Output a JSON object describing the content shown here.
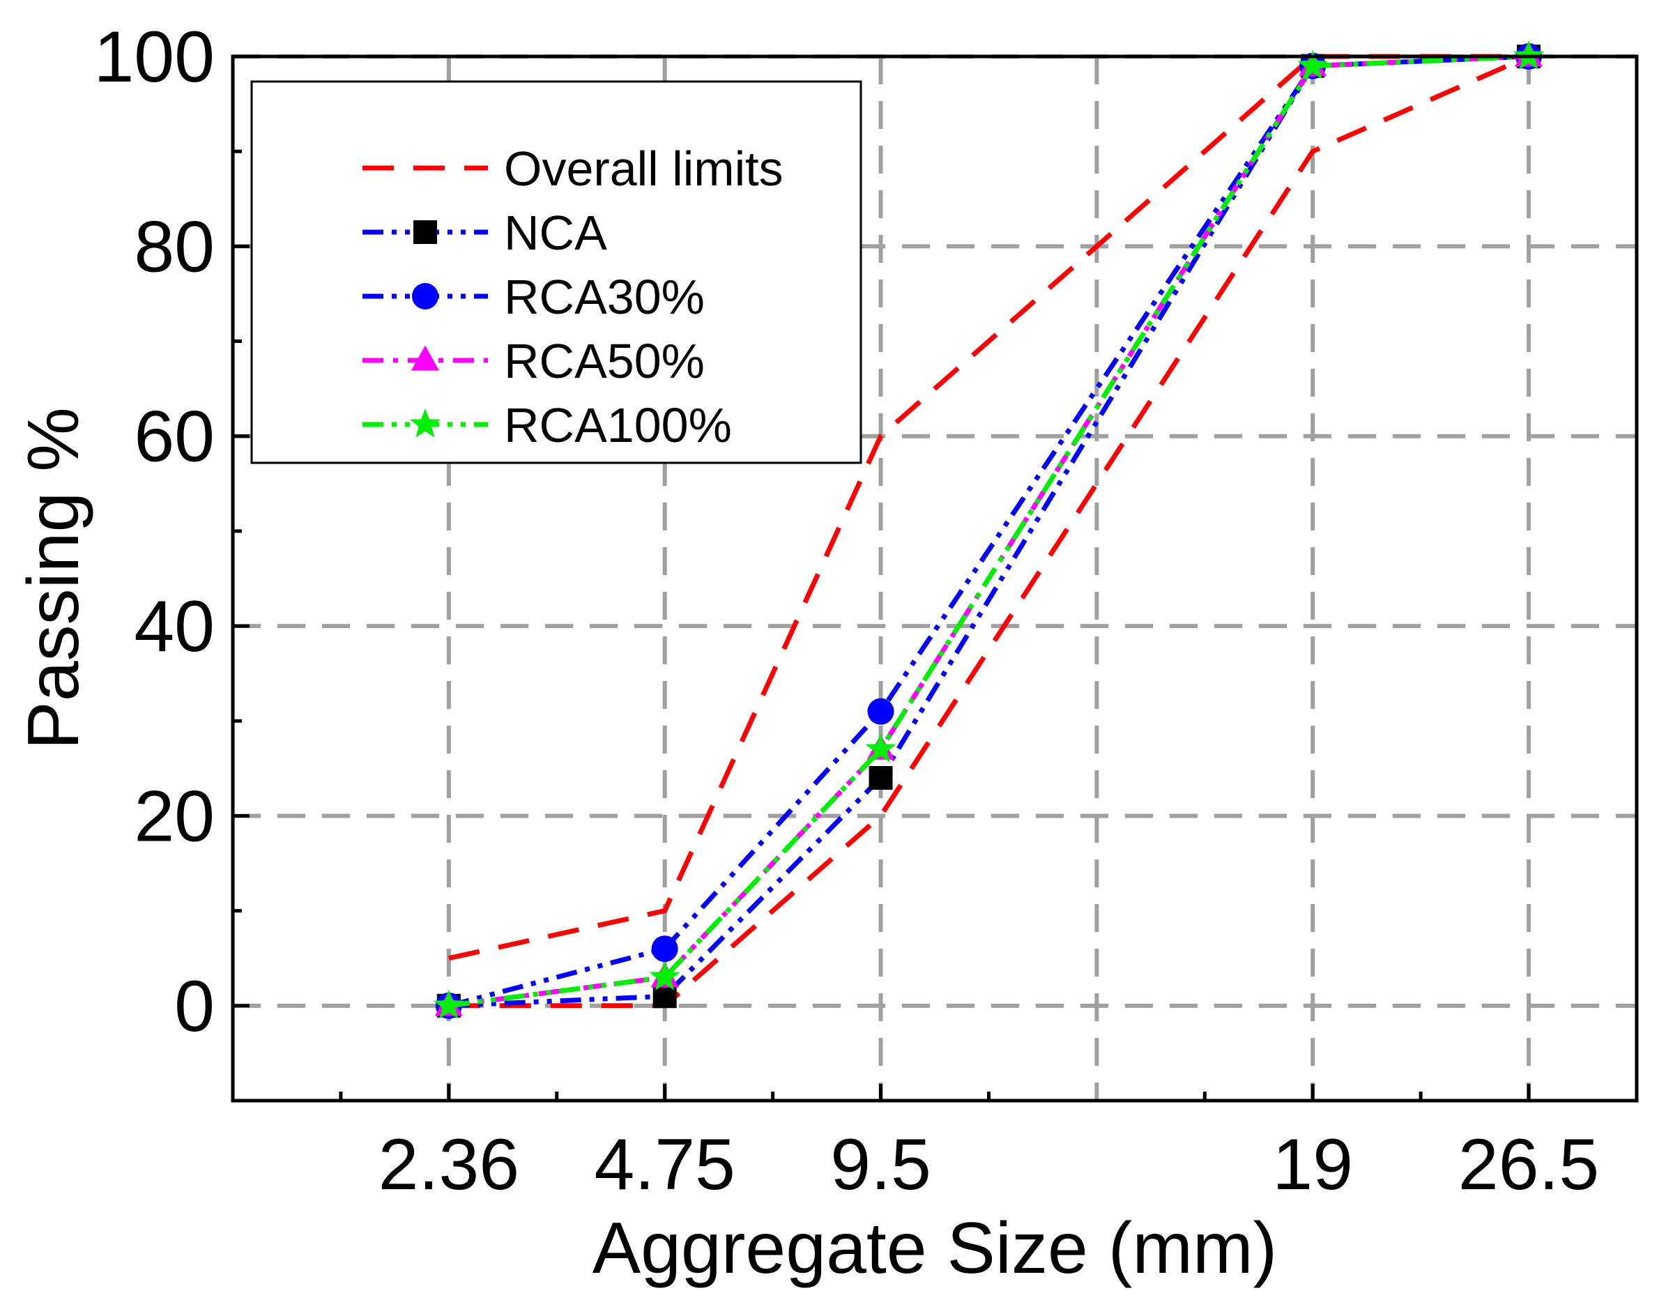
{
  "chart_data": {
    "type": "line",
    "xlabel": "Aggregate Size (mm)",
    "ylabel": "Passing %",
    "xlim": [
      0,
      13
    ],
    "ylim": [
      -10,
      100
    ],
    "x_ticks": [
      {
        "pos": 2,
        "label": "2.36"
      },
      {
        "pos": 4,
        "label": "4.75"
      },
      {
        "pos": 6,
        "label": "9.5"
      },
      {
        "pos": 10,
        "label": "19"
      },
      {
        "pos": 12,
        "label": "26.5"
      }
    ],
    "x_minor_ticks": [
      1,
      3,
      5,
      7,
      9,
      11
    ],
    "x_gridlines": [
      2,
      4,
      6,
      8,
      10,
      12
    ],
    "y_ticks": [
      0,
      20,
      40,
      60,
      80,
      100
    ],
    "y_minor_ticks": [
      -10,
      10,
      30,
      50,
      70,
      90
    ],
    "grid": true,
    "legend_position": "top-left",
    "series": [
      {
        "name": "Overall limits",
        "color": "#ff0000",
        "dash": "dashed",
        "marker": "none",
        "x": [
          2,
          4,
          6,
          8,
          10,
          12
        ],
        "values": [
          5,
          10,
          60,
          80,
          100,
          100
        ]
      },
      {
        "name": "",
        "legend": false,
        "color": "#ff0000",
        "dash": "dashed",
        "marker": "none",
        "x": [
          2,
          4,
          6,
          8,
          10,
          12
        ],
        "values": [
          0,
          0,
          20,
          55,
          90,
          100
        ]
      },
      {
        "name": "NCA",
        "color": "#0000ff",
        "dash": "dashdotdot",
        "marker": "square",
        "marker_color": "#000000",
        "x": [
          2,
          4,
          6,
          10,
          12
        ],
        "values": [
          0,
          1,
          24,
          99,
          100
        ]
      },
      {
        "name": "RCA30%",
        "color": "#0000ff",
        "dash": "dashdotdot",
        "marker": "circle",
        "marker_color": "#0000ff",
        "x": [
          2,
          4,
          6,
          10,
          12
        ],
        "values": [
          0,
          6,
          31,
          99,
          100
        ]
      },
      {
        "name": "RCA50%",
        "color": "#ff00ff",
        "dash": "dashdot",
        "marker": "triangle",
        "marker_color": "#ff00ff",
        "x": [
          2,
          4,
          6,
          10,
          12
        ],
        "values": [
          0,
          3,
          27,
          99,
          100
        ]
      },
      {
        "name": "RCA100%",
        "color": "#00ee00",
        "dash": "dashdotdot",
        "marker": "star",
        "marker_color": "#00ee00",
        "x": [
          2,
          4,
          6,
          10,
          12
        ],
        "values": [
          0,
          3,
          27,
          99,
          100
        ]
      }
    ]
  }
}
